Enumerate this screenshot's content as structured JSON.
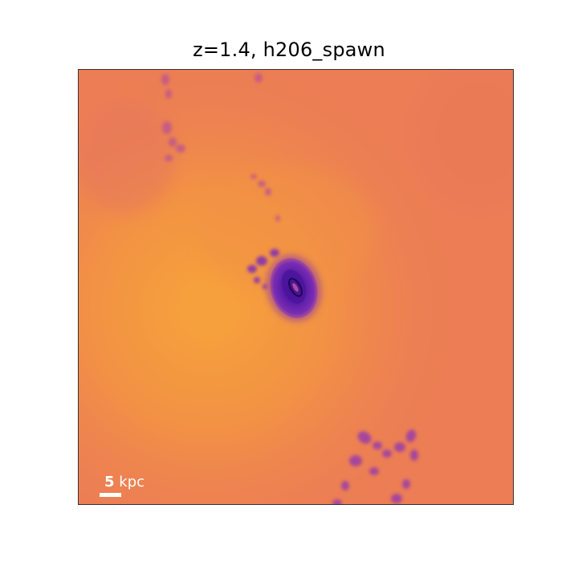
{
  "title": "z=1.4, h206_spawn",
  "scale_bar": {
    "value": "5",
    "unit": "kpc"
  },
  "colors": {
    "background_orange": "#EE8352",
    "bright_orange": "#F7A03C",
    "galaxy_purple": "#6A22B0",
    "galaxy_core": "#2C0A6E",
    "filament_purple": "#A6459A"
  }
}
